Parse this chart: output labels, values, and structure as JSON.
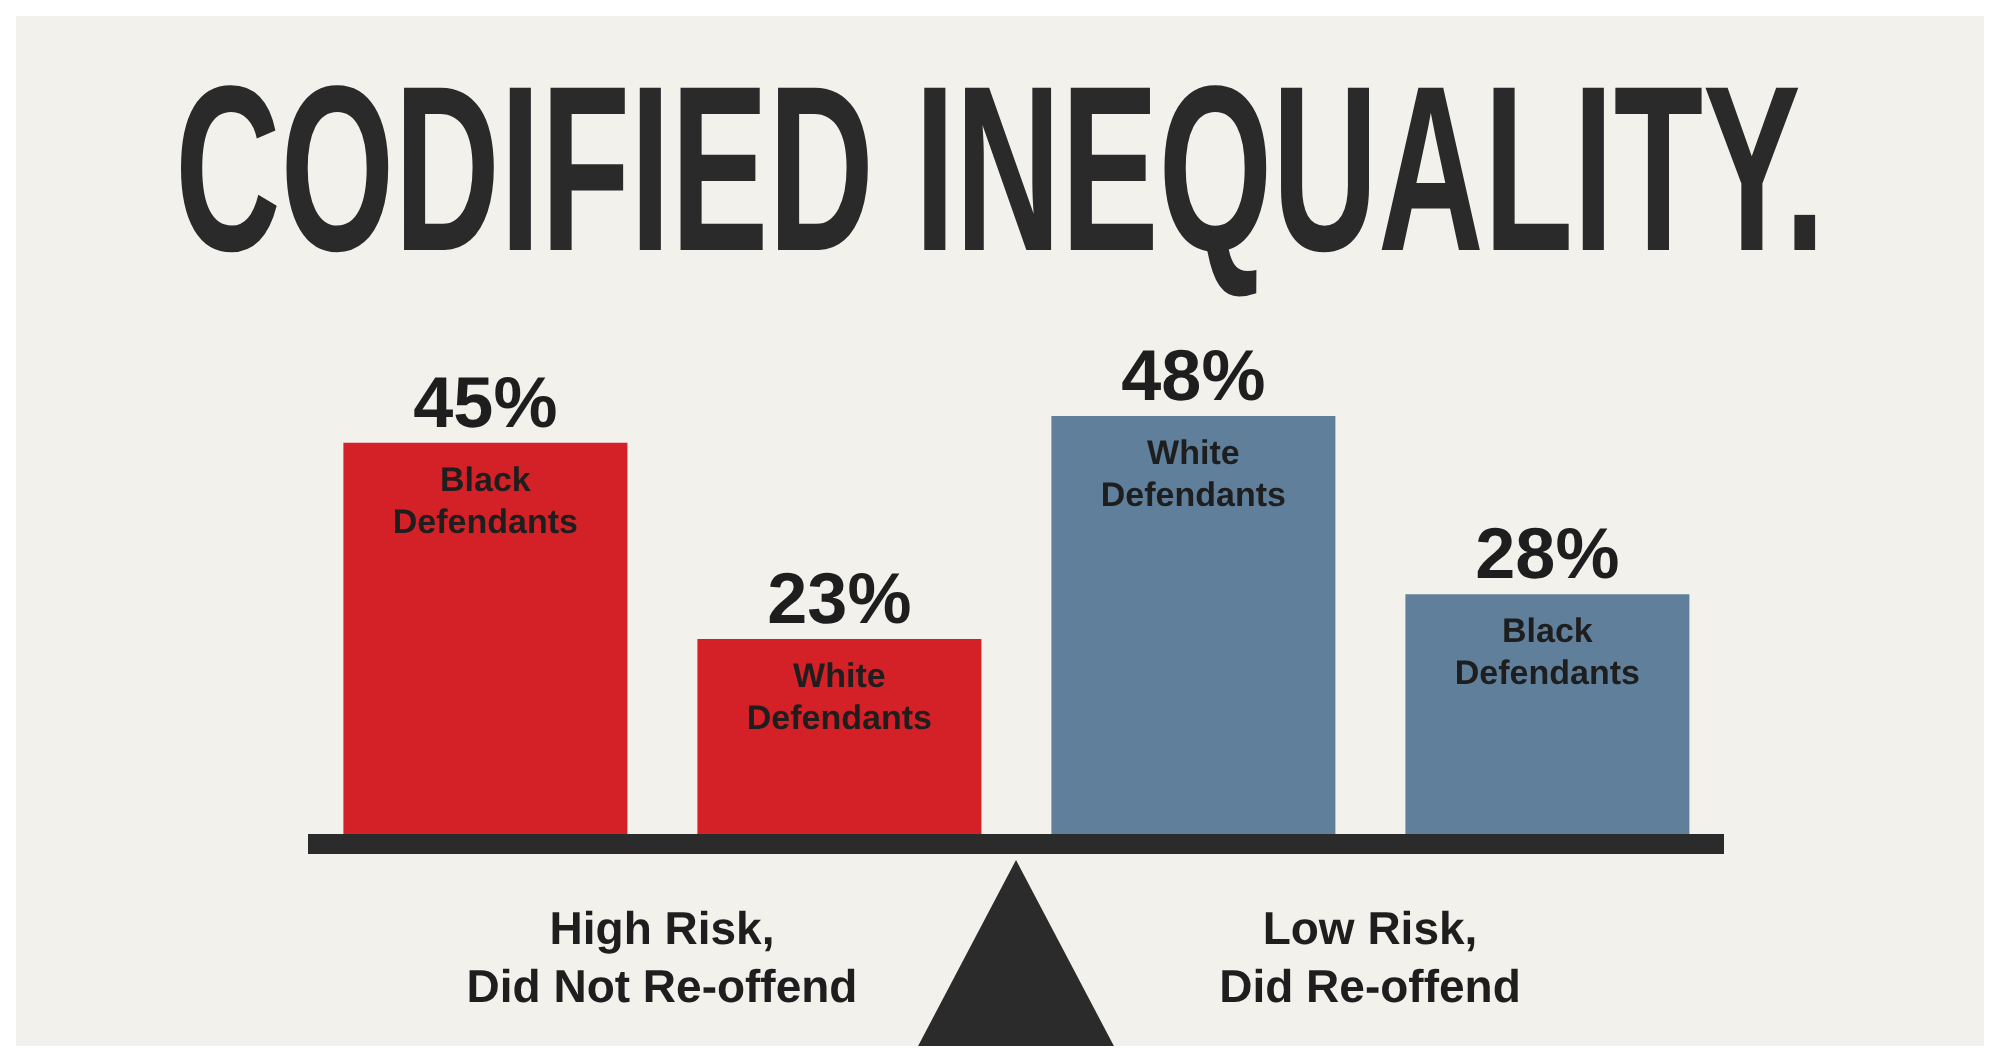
{
  "chart_data": {
    "type": "bar",
    "title": "CODIFIED INEQUALITY.",
    "categories": [
      "Black Defendants",
      "White Defendants",
      "White Defendants",
      "Black Defendants"
    ],
    "values": [
      45,
      23,
      48,
      28
    ],
    "colors": [
      "#d42027",
      "#d42027",
      "#5f7f9b",
      "#5f7f9b"
    ],
    "value_labels": [
      "45%",
      "23%",
      "48%",
      "28%"
    ],
    "annotations": [
      "High Risk, Did Not Re-offend",
      "Low Risk, Did Re-offend"
    ]
  }
}
